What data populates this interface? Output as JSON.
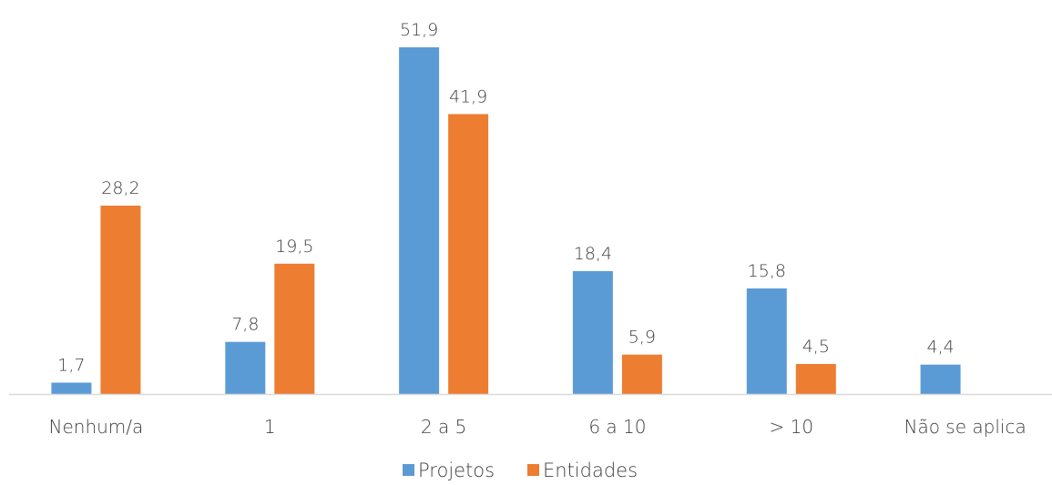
{
  "chart_data": {
    "type": "bar",
    "categories": [
      "Nenhum/a",
      "1",
      "2 a 5",
      "6 a 10",
      "> 10",
      "Não se aplica"
    ],
    "series": [
      {
        "name": "Projetos",
        "color": "#5B9BD5",
        "values": [
          1.7,
          7.8,
          51.9,
          18.4,
          15.8,
          4.4
        ],
        "labels": [
          "1,7",
          "7,8",
          "51,9",
          "18,4",
          "15,8",
          "4,4"
        ]
      },
      {
        "name": "Entidades",
        "color": "#ED7D31",
        "values": [
          28.2,
          19.5,
          41.9,
          5.9,
          4.5,
          null
        ],
        "labels": [
          "28,2",
          "19,5",
          "41,9",
          "5,9",
          "4,5",
          null
        ]
      }
    ],
    "ylim": [
      0,
      51.9
    ],
    "grid": false,
    "legend_position": "bottom",
    "axis_color": "#D9D9D9"
  }
}
